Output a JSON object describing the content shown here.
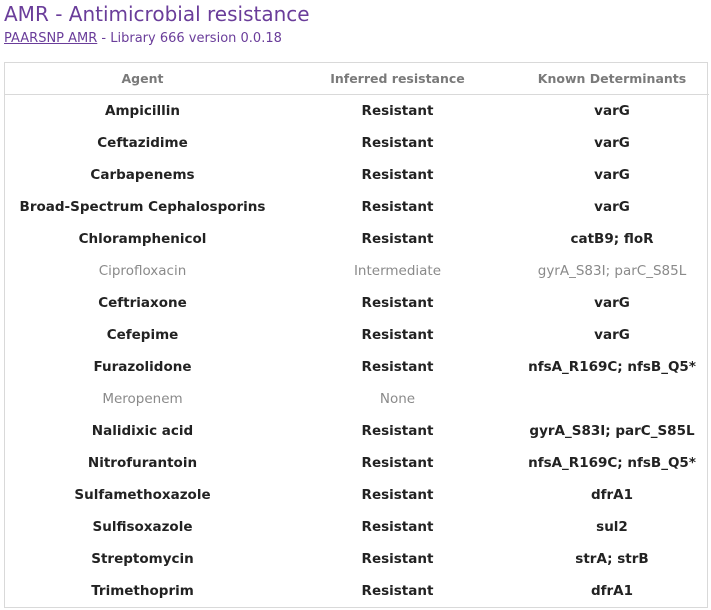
{
  "header": {
    "title": "AMR - Antimicrobial resistance",
    "subtitle_link": "PAARSNP AMR",
    "subtitle_rest": " - Library 666 version 0.0.18"
  },
  "table": {
    "columns": [
      "Agent",
      "Inferred resistance",
      "Known Determinants"
    ],
    "rows": [
      {
        "agent": "Ampicillin",
        "resistance": "Resistant",
        "determinants": "varG",
        "muted": false
      },
      {
        "agent": "Ceftazidime",
        "resistance": "Resistant",
        "determinants": "varG",
        "muted": false
      },
      {
        "agent": "Carbapenems",
        "resistance": "Resistant",
        "determinants": "varG",
        "muted": false
      },
      {
        "agent": "Broad-Spectrum Cephalosporins",
        "resistance": "Resistant",
        "determinants": "varG",
        "muted": false
      },
      {
        "agent": "Chloramphenicol",
        "resistance": "Resistant",
        "determinants": "catB9; floR",
        "muted": false
      },
      {
        "agent": "Ciprofloxacin",
        "resistance": "Intermediate",
        "determinants": "gyrA_S83I; parC_S85L",
        "muted": true
      },
      {
        "agent": "Ceftriaxone",
        "resistance": "Resistant",
        "determinants": "varG",
        "muted": false
      },
      {
        "agent": "Cefepime",
        "resistance": "Resistant",
        "determinants": "varG",
        "muted": false
      },
      {
        "agent": "Furazolidone",
        "resistance": "Resistant",
        "determinants": "nfsA_R169C; nfsB_Q5*",
        "muted": false
      },
      {
        "agent": "Meropenem",
        "resistance": "None",
        "determinants": "",
        "muted": true
      },
      {
        "agent": "Nalidixic acid",
        "resistance": "Resistant",
        "determinants": "gyrA_S83I; parC_S85L",
        "muted": false
      },
      {
        "agent": "Nitrofurantoin",
        "resistance": "Resistant",
        "determinants": "nfsA_R169C; nfsB_Q5*",
        "muted": false
      },
      {
        "agent": "Sulfamethoxazole",
        "resistance": "Resistant",
        "determinants": "dfrA1",
        "muted": false
      },
      {
        "agent": "Sulfisoxazole",
        "resistance": "Resistant",
        "determinants": "sul2",
        "muted": false
      },
      {
        "agent": "Streptomycin",
        "resistance": "Resistant",
        "determinants": "strA; strB",
        "muted": false
      },
      {
        "agent": "Trimethoprim",
        "resistance": "Resistant",
        "determinants": "dfrA1",
        "muted": false
      }
    ]
  },
  "colors": {
    "accent": "#6a3d9a",
    "header_text": "#7a7a7a",
    "muted_text": "#8a8a8a",
    "border": "#d9d9d9"
  }
}
